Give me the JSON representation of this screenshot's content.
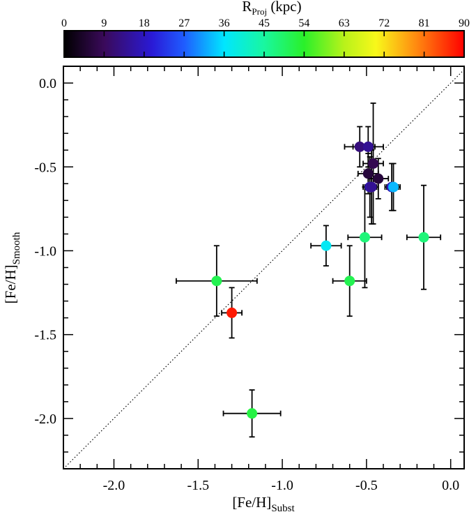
{
  "chart_data": {
    "type": "scatter",
    "xlabel": "[Fe/H]",
    "xlabel_sub": "Subst",
    "ylabel": "[Fe/H]",
    "ylabel_sub": "Smooth",
    "xlim": [
      -2.3,
      0.08
    ],
    "ylim": [
      -2.3,
      0.1
    ],
    "xticks": [
      -2.0,
      -1.5,
      -1.0,
      -0.5,
      0.0
    ],
    "xtick_labels": [
      "-2.0",
      "-1.5",
      "-1.0",
      "-0.5",
      "0.0"
    ],
    "yticks": [
      0.0,
      -0.5,
      -1.0,
      -1.5,
      -2.0
    ],
    "ytick_labels": [
      "0.0",
      "-0.5",
      "-1.0",
      "-1.5",
      "-2.0"
    ],
    "reference_line": "one-to-one dotted",
    "colorbar": {
      "label": "R",
      "label_sub": "Proj",
      "label_unit": " (kpc)",
      "range": [
        0,
        90
      ],
      "ticks": [
        0,
        9,
        18,
        27,
        36,
        45,
        54,
        63,
        72,
        81,
        90
      ],
      "tick_labels": [
        "0",
        "9",
        "18",
        "27",
        "36",
        "45",
        "54",
        "63",
        "72",
        "81",
        "90"
      ]
    },
    "points": [
      {
        "x": -0.54,
        "y": -0.38,
        "xerr": 0.09,
        "yerr": 0.12,
        "r": 12
      },
      {
        "x": -0.49,
        "y": -0.38,
        "xerr": 0.09,
        "yerr": 0.12,
        "r": 14
      },
      {
        "x": -0.46,
        "y": -0.48,
        "xerr": 0.06,
        "yerr": 0.36,
        "r": 8
      },
      {
        "x": -0.49,
        "y": -0.54,
        "xerr": 0.06,
        "yerr": 0.12,
        "r": 6
      },
      {
        "x": -0.43,
        "y": -0.57,
        "xerr": 0.06,
        "yerr": 0.12,
        "r": 6
      },
      {
        "x": -0.48,
        "y": -0.62,
        "xerr": 0.04,
        "yerr": 0.18,
        "r": 16
      },
      {
        "x": -0.47,
        "y": -0.62,
        "xerr": 0.04,
        "yerr": 0.22,
        "r": 14
      },
      {
        "x": -0.35,
        "y": -0.62,
        "xerr": 0.04,
        "yerr": 0.14,
        "r": 17
      },
      {
        "x": -0.34,
        "y": -0.62,
        "xerr": 0.04,
        "yerr": 0.14,
        "r": 33
      },
      {
        "x": -0.74,
        "y": -0.97,
        "xerr": 0.09,
        "yerr": 0.12,
        "r": 37
      },
      {
        "x": -0.51,
        "y": -0.92,
        "xerr": 0.1,
        "yerr": 0.3,
        "r": 48
      },
      {
        "x": -0.16,
        "y": -0.92,
        "xerr": 0.1,
        "yerr": 0.31,
        "r": 48
      },
      {
        "x": -0.6,
        "y": -1.18,
        "xerr": 0.1,
        "yerr": 0.21,
        "r": 51
      },
      {
        "x": -1.39,
        "y": -1.18,
        "xerr": 0.24,
        "yerr": 0.21,
        "r": 51
      },
      {
        "x": -1.3,
        "y": -1.37,
        "xerr": 0.06,
        "yerr": 0.15,
        "r": 88
      },
      {
        "x": -1.18,
        "y": -1.97,
        "xerr": 0.17,
        "yerr": 0.14,
        "r": 52
      }
    ]
  }
}
